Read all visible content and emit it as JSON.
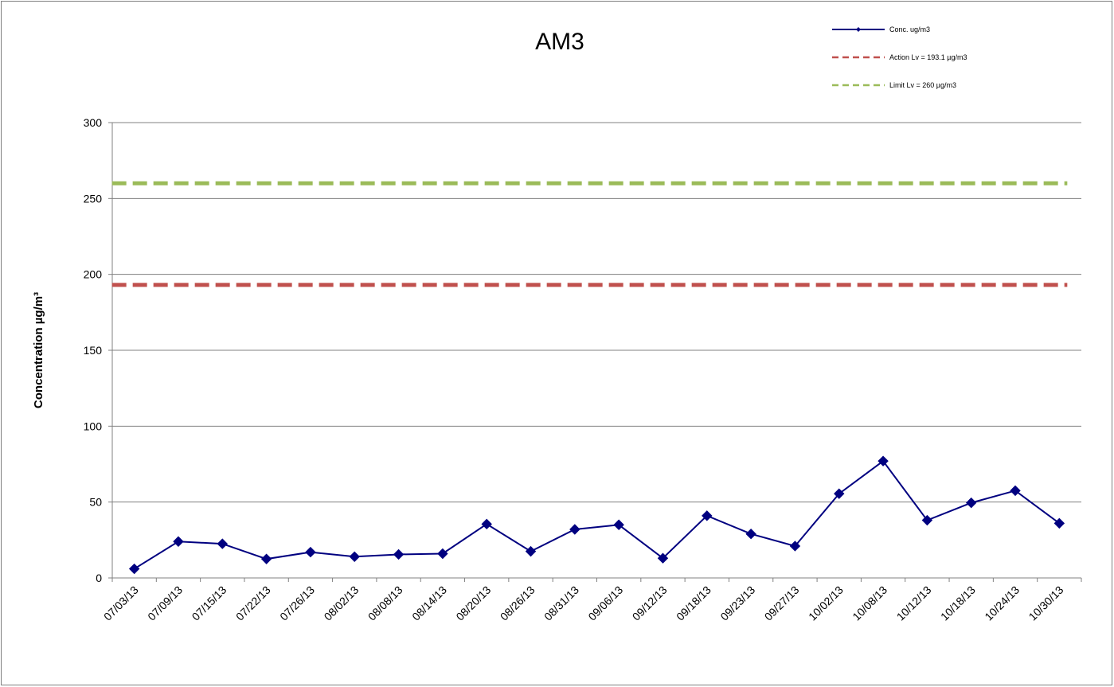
{
  "chart_data": {
    "type": "line",
    "title": "AM3",
    "ylabel": "Concentration  µg/m³",
    "xlabel": "",
    "ylim": [
      0,
      300
    ],
    "yticks": [
      0,
      50,
      100,
      150,
      200,
      250,
      300
    ],
    "grid": true,
    "legend_position": "top-right",
    "categories": [
      "07/03/13",
      "07/09/13",
      "07/15/13",
      "07/22/13",
      "07/26/13",
      "08/02/13",
      "08/08/13",
      "08/14/13",
      "08/20/13",
      "08/26/13",
      "08/31/13",
      "09/06/13",
      "09/12/13",
      "09/18/13",
      "09/23/13",
      "09/27/13",
      "10/02/13",
      "10/08/13",
      "10/12/13",
      "10/18/13",
      "10/24/13",
      "10/30/13"
    ],
    "series": [
      {
        "name": "Conc. ug/m3",
        "style": "line-marker",
        "color": "#000080",
        "values": [
          6,
          24,
          22.5,
          12.5,
          17,
          14,
          15.5,
          16,
          35.5,
          17.5,
          32,
          35,
          13,
          41,
          29,
          21,
          55.5,
          77,
          38,
          49.5,
          57.5,
          36
        ]
      },
      {
        "name": "Action Lv = 193.1 µg/m3",
        "style": "dashed",
        "color": "#c0504d",
        "values": [
          193.1,
          193.1,
          193.1,
          193.1,
          193.1,
          193.1,
          193.1,
          193.1,
          193.1,
          193.1,
          193.1,
          193.1,
          193.1,
          193.1,
          193.1,
          193.1,
          193.1,
          193.1,
          193.1,
          193.1,
          193.1,
          193.1
        ]
      },
      {
        "name": "Limit Lv = 260 µg/m3",
        "style": "dashed",
        "color": "#9bbb59",
        "values": [
          260,
          260,
          260,
          260,
          260,
          260,
          260,
          260,
          260,
          260,
          260,
          260,
          260,
          260,
          260,
          260,
          260,
          260,
          260,
          260,
          260,
          260
        ]
      }
    ]
  }
}
